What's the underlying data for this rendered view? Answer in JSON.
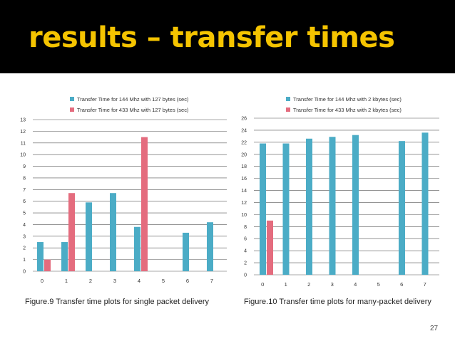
{
  "slide": {
    "title": "results – transfer times",
    "page_number": "27",
    "colors": {
      "header_bg": "#000000",
      "title": "#f5c400",
      "series1": "#4bacc6",
      "series2": "#e46c7e"
    }
  },
  "captions": {
    "left": "Figure.9 Transfer time plots for single packet delivery",
    "right": "Figure.10 Transfer time plots for many-packet delivery"
  },
  "chart_data": [
    {
      "type": "bar",
      "title": "",
      "xlabel": "",
      "ylabel": "",
      "categories": [
        "0",
        "1",
        "2",
        "3",
        "4",
        "5",
        "6",
        "7"
      ],
      "ylim": [
        0,
        13
      ],
      "yticks": [
        0,
        1,
        2,
        3,
        4,
        5,
        6,
        7,
        8,
        9,
        10,
        11,
        12,
        13
      ],
      "grid": true,
      "legend": "top",
      "series": [
        {
          "name": "Transfer Time for 144 Mhz with 127 bytes (sec)",
          "values": [
            2.5,
            2.5,
            5.9,
            6.7,
            3.8,
            null,
            3.3,
            4.2
          ]
        },
        {
          "name": "Transfer Time for 433 Mhz with 127 bytes (sec)",
          "values": [
            1.0,
            6.7,
            null,
            null,
            11.5,
            null,
            null,
            null
          ]
        }
      ]
    },
    {
      "type": "bar",
      "title": "",
      "xlabel": "",
      "ylabel": "",
      "categories": [
        "0",
        "1",
        "2",
        "3",
        "4",
        "5",
        "6",
        "7"
      ],
      "ylim": [
        0,
        26
      ],
      "yticks": [
        0,
        2,
        4,
        6,
        8,
        10,
        12,
        14,
        16,
        18,
        20,
        22,
        24,
        26
      ],
      "grid": true,
      "legend": "top",
      "series": [
        {
          "name": "Transfer Time for 144 Mhz with 2 kbytes (sec)",
          "values": [
            21.8,
            21.8,
            22.6,
            22.9,
            23.2,
            null,
            22.2,
            23.6
          ]
        },
        {
          "name": "Transfer Time for 433 Mhz with 2 kbytes (sec)",
          "values": [
            9.0,
            null,
            null,
            null,
            null,
            null,
            null,
            null
          ]
        }
      ]
    }
  ]
}
